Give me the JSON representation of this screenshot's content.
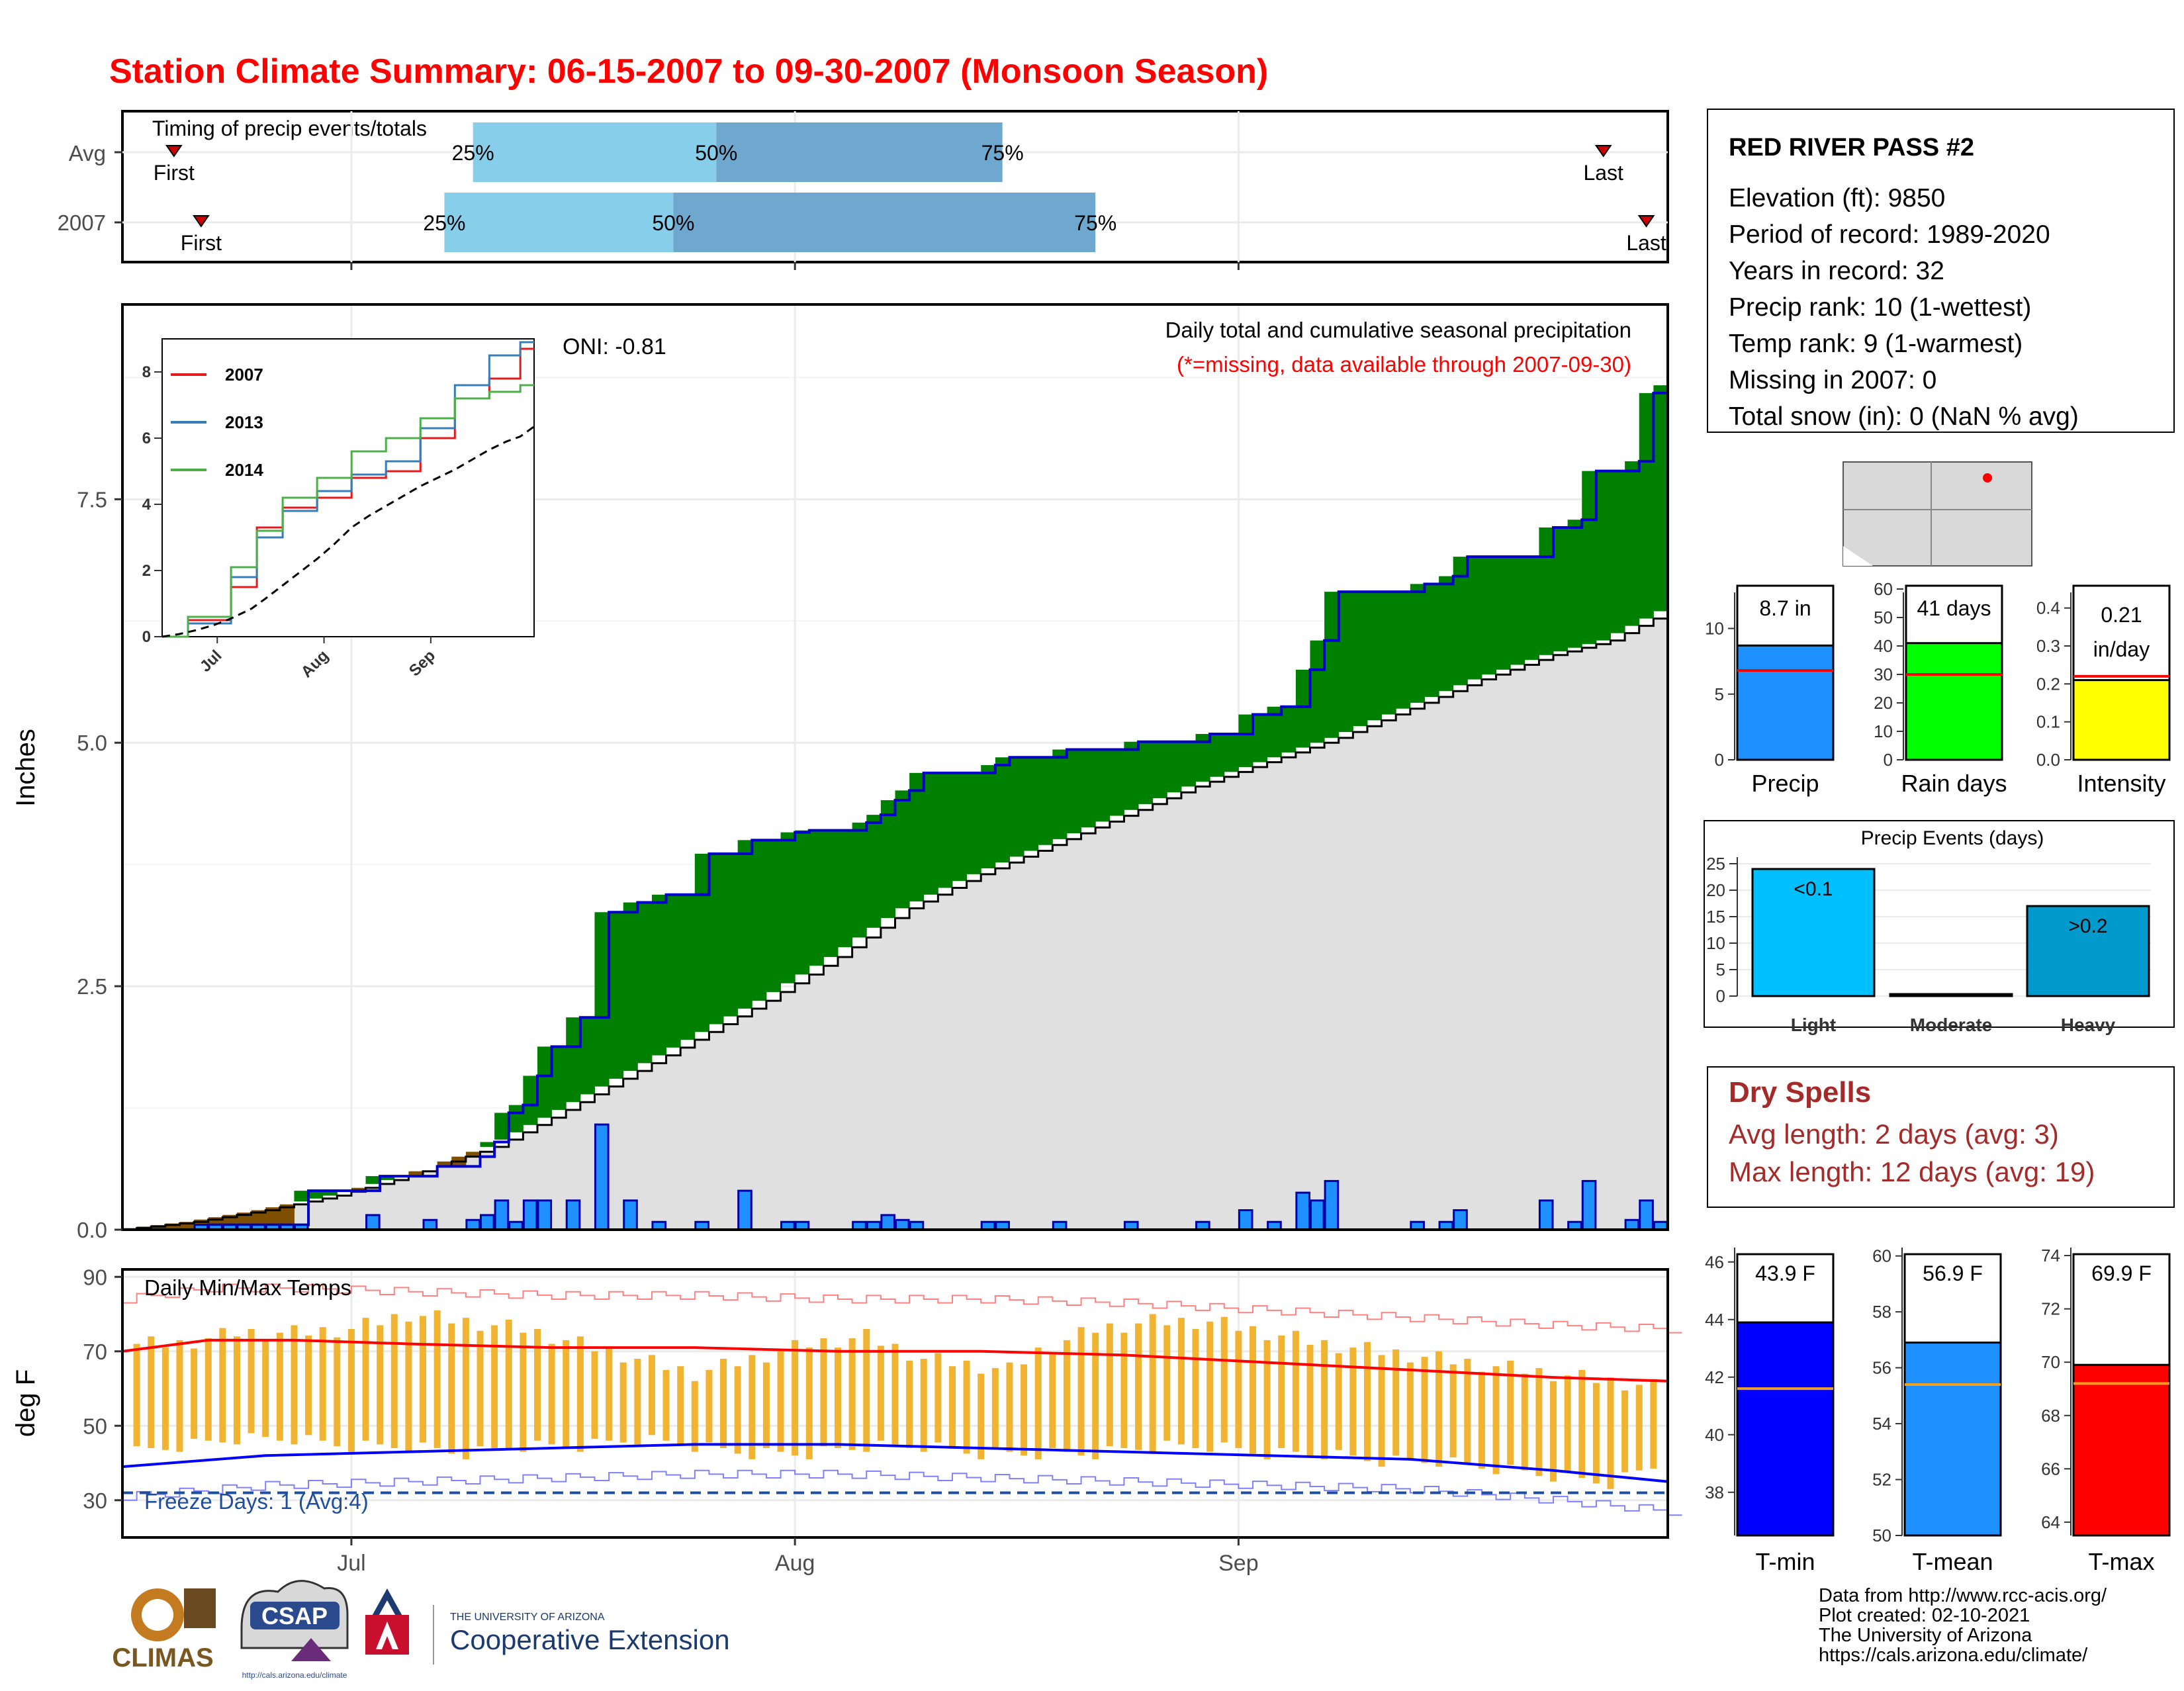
{
  "page": {
    "title": "Station Climate Summary: 06-15-2007 to 09-30-2007 (Monsoon Season)",
    "footer_lines": [
      "Data from http://www.rcc-acis.org/",
      "Plot created: 02-10-2021",
      "The University of Arizona",
      "https://cals.arizona.edu/climate/"
    ],
    "logos": {
      "climas": "CLIMAS",
      "csap": "CSAP",
      "csap_url": "http://cals.arizona.edu/climate",
      "ua_small": "THE UNIVERSITY OF ARIZONA",
      "ua_big": "Cooperative Extension"
    }
  },
  "colors": {
    "title": "#ff0000",
    "light_blue": "#87ceeb",
    "mid_blue": "#6fa8cf",
    "green": "#008000",
    "brown": "#7f4f00",
    "grey_fill": "#e0e0e0",
    "bar_blue": "#1e90ff",
    "temp_bar": "#f0b432",
    "dry_spell_text": "#a52a2a"
  },
  "station": {
    "name": "RED RIVER PASS #2",
    "lines": [
      "Elevation (ft): 9850",
      "Period of record: 1989-2020",
      "Years in record: 32",
      "Precip rank: 10 (1-wettest)",
      "Temp rank: 9 (1-warmest)",
      "Missing in 2007: 0",
      "Total snow (in): 0 (NaN % avg)"
    ]
  },
  "timing": {
    "label": "Timing of precip events/totals",
    "rows": [
      {
        "label": "Avg",
        "first_doy": 3.6,
        "last_doy": 103.5,
        "p25": 24.5,
        "p50": 41.5,
        "p75": 61.5,
        "first": "First",
        "last": "Last",
        "p25_label": "25%",
        "p50_label": "50%",
        "p75_label": "75%"
      },
      {
        "label": "2007",
        "first_doy": 5.5,
        "last_doy": 106.5,
        "p25": 22.5,
        "p50": 38.5,
        "p75": 68.0,
        "first": "First",
        "last": "Last",
        "p25_label": "25%",
        "p50_label": "50%",
        "p75_label": "75%"
      }
    ]
  },
  "precip": {
    "oni": "ONI: -0.81",
    "subtitle": "Daily total and cumulative seasonal precipitation",
    "missing_note": "(*=missing, data available through 2007-09-30)",
    "ylabel": "Inches",
    "y_ticks": [
      "0.0",
      "2.5",
      "5.0",
      "7.5"
    ],
    "month_labels": [
      "Jul",
      "Aug",
      "Sep"
    ]
  },
  "inset": {
    "legend": [
      "2007",
      "2013",
      "2014"
    ],
    "legend_colors": [
      "#e41a1c",
      "#377eb8",
      "#4daf4a"
    ],
    "y_ticks": [
      "0",
      "2",
      "4",
      "6",
      "8"
    ],
    "x_ticks": [
      "Jul",
      "Aug",
      "Sep"
    ]
  },
  "temps": {
    "label": "Daily Min/Max Temps",
    "freeze": "Freeze Days: 1 (Avg:4)",
    "ylabel": "deg F",
    "y_ticks": [
      "30",
      "50",
      "70",
      "90"
    ]
  },
  "summary_bars": [
    {
      "label": "Precip",
      "value_label": "8.7 in",
      "ticks": [
        "0",
        "5",
        "10"
      ]
    },
    {
      "label": "Rain days",
      "value_label": "41 days",
      "ticks": [
        "0",
        "10",
        "20",
        "30",
        "40",
        "50",
        "60"
      ]
    },
    {
      "label": "Intensity",
      "value_label": "0.21",
      "value_label2": "in/day",
      "ticks": [
        "0.0",
        "0.1",
        "0.2",
        "0.3",
        "0.4"
      ]
    }
  ],
  "events": {
    "title": "Precip Events (days)",
    "ticks": [
      "0",
      "5",
      "10",
      "15",
      "20",
      "25"
    ],
    "categories": [
      "Light",
      "Moderate",
      "Heavy"
    ],
    "value_labels": [
      "<0.1",
      "",
      ">0.2"
    ]
  },
  "dry_spells": {
    "title": "Dry Spells",
    "avg": "Avg length: 2 days (avg: 3)",
    "max": "Max length: 12 days (avg: 19)"
  },
  "temp_bars": [
    {
      "label": "T-min",
      "value_label": "43.9 F",
      "ticks": [
        "38",
        "40",
        "42",
        "44",
        "46"
      ]
    },
    {
      "label": "T-mean",
      "value_label": "56.9 F",
      "ticks": [
        "50",
        "52",
        "54",
        "56",
        "58",
        "60"
      ]
    },
    {
      "label": "T-max",
      "value_label": "69.9 F",
      "ticks": [
        "64",
        "66",
        "68",
        "70",
        "72",
        "74"
      ]
    }
  ],
  "chart_data": [
    {
      "type": "bar",
      "name": "timing",
      "categories": [
        "Avg",
        "2007"
      ],
      "x_unit": "day of season (0 = 06-15)",
      "series": [
        {
          "name": "25%",
          "values": [
            24.5,
            22.5
          ]
        },
        {
          "name": "50%",
          "values": [
            41.5,
            38.5
          ]
        },
        {
          "name": "75%",
          "values": [
            61.5,
            68.0
          ]
        },
        {
          "name": "First",
          "values": [
            3.6,
            5.5
          ]
        },
        {
          "name": "Last",
          "values": [
            103.5,
            106.5
          ]
        }
      ]
    },
    {
      "type": "area",
      "name": "cumulative precipitation",
      "ylabel": "Inches",
      "ylim": [
        0,
        9.5
      ],
      "x_unit": "day of season (0 = 06-15)",
      "daily_2007": [
        [
          6,
          0.05
        ],
        [
          7,
          0.05
        ],
        [
          8,
          0.05
        ],
        [
          9,
          0.05
        ],
        [
          10,
          0.05
        ],
        [
          11,
          0.05
        ],
        [
          12,
          0.05
        ],
        [
          13,
          0.05
        ],
        [
          18,
          0.15
        ],
        [
          22,
          0.1
        ],
        [
          25,
          0.1
        ],
        [
          26,
          0.15
        ],
        [
          27,
          0.3
        ],
        [
          28,
          0.08
        ],
        [
          29,
          0.3
        ],
        [
          30,
          0.3
        ],
        [
          32,
          0.3
        ],
        [
          34,
          1.08
        ],
        [
          36,
          0.3
        ],
        [
          38,
          0.08
        ],
        [
          41,
          0.08
        ],
        [
          44,
          0.4
        ],
        [
          47,
          0.08
        ],
        [
          48,
          0.08
        ],
        [
          52,
          0.08
        ],
        [
          53,
          0.08
        ],
        [
          54,
          0.15
        ],
        [
          55,
          0.1
        ],
        [
          56,
          0.08
        ],
        [
          61,
          0.08
        ],
        [
          62,
          0.08
        ],
        [
          66,
          0.08
        ],
        [
          71,
          0.08
        ],
        [
          76,
          0.08
        ],
        [
          79,
          0.2
        ],
        [
          81,
          0.08
        ],
        [
          83,
          0.38
        ],
        [
          84,
          0.3
        ],
        [
          85,
          0.5
        ],
        [
          91,
          0.08
        ],
        [
          93,
          0.08
        ],
        [
          94,
          0.2
        ],
        [
          100,
          0.3
        ],
        [
          102,
          0.08
        ],
        [
          103,
          0.5
        ],
        [
          106,
          0.1
        ],
        [
          107,
          0.3
        ],
        [
          108,
          0.08
        ]
      ],
      "cumulative_2007": [
        [
          0,
          0
        ],
        [
          5,
          0
        ],
        [
          6,
          0.05
        ],
        [
          13,
          0.4
        ],
        [
          18,
          0.55
        ],
        [
          22,
          0.65
        ],
        [
          25,
          0.75
        ],
        [
          26,
          0.9
        ],
        [
          27,
          1.2
        ],
        [
          28,
          1.28
        ],
        [
          29,
          1.58
        ],
        [
          30,
          1.88
        ],
        [
          32,
          2.18
        ],
        [
          34,
          3.26
        ],
        [
          36,
          3.36
        ],
        [
          38,
          3.44
        ],
        [
          41,
          3.86
        ],
        [
          44,
          4.0
        ],
        [
          47,
          4.08
        ],
        [
          48,
          4.1
        ],
        [
          52,
          4.18
        ],
        [
          53,
          4.26
        ],
        [
          54,
          4.41
        ],
        [
          55,
          4.51
        ],
        [
          56,
          4.69
        ],
        [
          61,
          4.77
        ],
        [
          62,
          4.85
        ],
        [
          66,
          4.93
        ],
        [
          71,
          5.01
        ],
        [
          76,
          5.09
        ],
        [
          79,
          5.29
        ],
        [
          81,
          5.37
        ],
        [
          83,
          5.75
        ],
        [
          84,
          6.05
        ],
        [
          85,
          6.55
        ],
        [
          91,
          6.63
        ],
        [
          93,
          6.71
        ],
        [
          94,
          6.91
        ],
        [
          100,
          7.21
        ],
        [
          102,
          7.29
        ],
        [
          103,
          7.79
        ],
        [
          106,
          7.89
        ],
        [
          107,
          8.59
        ],
        [
          108,
          8.67
        ]
      ],
      "cumulative_avg": [
        [
          0,
          0
        ],
        [
          5,
          0.08
        ],
        [
          10,
          0.2
        ],
        [
          15,
          0.35
        ],
        [
          20,
          0.55
        ],
        [
          26,
          0.85
        ],
        [
          30,
          1.15
        ],
        [
          35,
          1.55
        ],
        [
          40,
          1.95
        ],
        [
          45,
          2.35
        ],
        [
          50,
          2.8
        ],
        [
          55,
          3.3
        ],
        [
          60,
          3.65
        ],
        [
          65,
          3.95
        ],
        [
          70,
          4.25
        ],
        [
          75,
          4.55
        ],
        [
          80,
          4.8
        ],
        [
          85,
          5.05
        ],
        [
          90,
          5.35
        ],
        [
          95,
          5.65
        ],
        [
          100,
          5.9
        ],
        [
          104,
          6.05
        ],
        [
          108,
          6.35
        ]
      ]
    },
    {
      "type": "line",
      "name": "daily min/max temps",
      "ylabel": "deg F",
      "ylim": [
        20,
        92
      ],
      "x_unit": "day of season (0 = 06-15)",
      "tmax_2007": [
        [
          0,
          72
        ],
        [
          4,
          72
        ],
        [
          8,
          75
        ],
        [
          12,
          75
        ],
        [
          16,
          76
        ],
        [
          20,
          80
        ],
        [
          24,
          78
        ],
        [
          28,
          76
        ],
        [
          30,
          74
        ],
        [
          34,
          70
        ],
        [
          38,
          66
        ],
        [
          40,
          64
        ],
        [
          44,
          68
        ],
        [
          48,
          72
        ],
        [
          52,
          74
        ],
        [
          56,
          68
        ],
        [
          60,
          66
        ],
        [
          62,
          65
        ],
        [
          64,
          70
        ],
        [
          68,
          76
        ],
        [
          72,
          78
        ],
        [
          76,
          78
        ],
        [
          80,
          75
        ],
        [
          84,
          72
        ],
        [
          88,
          70
        ],
        [
          92,
          68
        ],
        [
          96,
          66
        ],
        [
          100,
          64
        ],
        [
          104,
          62
        ],
        [
          108,
          60
        ]
      ],
      "tmin_2007": [
        [
          0,
          42
        ],
        [
          4,
          44
        ],
        [
          8,
          46
        ],
        [
          12,
          46
        ],
        [
          16,
          44
        ],
        [
          20,
          44
        ],
        [
          24,
          42
        ],
        [
          28,
          44
        ],
        [
          32,
          44
        ],
        [
          36,
          46
        ],
        [
          40,
          44
        ],
        [
          44,
          42
        ],
        [
          48,
          42
        ],
        [
          52,
          44
        ],
        [
          56,
          44
        ],
        [
          60,
          42
        ],
        [
          64,
          42
        ],
        [
          68,
          42
        ],
        [
          72,
          44
        ],
        [
          76,
          44
        ],
        [
          80,
          42
        ],
        [
          84,
          42
        ],
        [
          88,
          40
        ],
        [
          92,
          40
        ],
        [
          96,
          38
        ],
        [
          100,
          36
        ],
        [
          104,
          34
        ],
        [
          108,
          40
        ]
      ],
      "avg_tmax": [
        [
          0,
          70
        ],
        [
          6,
          73
        ],
        [
          12,
          73
        ],
        [
          20,
          72
        ],
        [
          30,
          71
        ],
        [
          40,
          71
        ],
        [
          50,
          70
        ],
        [
          60,
          70
        ],
        [
          70,
          69
        ],
        [
          80,
          67
        ],
        [
          90,
          65
        ],
        [
          100,
          63
        ],
        [
          108,
          62
        ]
      ],
      "avg_tmin": [
        [
          0,
          39
        ],
        [
          10,
          42
        ],
        [
          20,
          43
        ],
        [
          30,
          44
        ],
        [
          40,
          45
        ],
        [
          50,
          45
        ],
        [
          60,
          44
        ],
        [
          70,
          43
        ],
        [
          80,
          42
        ],
        [
          90,
          41
        ],
        [
          100,
          38
        ],
        [
          108,
          35
        ]
      ],
      "freeze_line": 32
    },
    {
      "type": "bar",
      "name": "Precip",
      "values": [
        8.7
      ],
      "average": 6.8,
      "ylim": [
        0,
        13
      ]
    },
    {
      "type": "bar",
      "name": "Rain days",
      "values": [
        41
      ],
      "average": 30,
      "ylim": [
        0,
        60
      ]
    },
    {
      "type": "bar",
      "name": "Intensity",
      "values": [
        0.21
      ],
      "average": 0.22,
      "ylim": [
        0,
        0.45
      ]
    },
    {
      "type": "bar",
      "name": "Precip Events (days)",
      "categories": [
        "Light",
        "Moderate",
        "Heavy"
      ],
      "values": [
        24,
        0,
        17
      ],
      "ylim": [
        0,
        25
      ]
    },
    {
      "type": "bar",
      "name": "T-min",
      "values": [
        43.9
      ],
      "average": 41.6,
      "ylim": [
        36.5,
        46.5
      ]
    },
    {
      "type": "bar",
      "name": "T-mean",
      "values": [
        56.9
      ],
      "average": 55.4,
      "ylim": [
        50,
        60.3
      ]
    },
    {
      "type": "bar",
      "name": "T-max",
      "values": [
        69.9
      ],
      "average": 69.2,
      "ylim": [
        63.5,
        74.3
      ]
    },
    {
      "type": "line",
      "name": "inset cumulative",
      "ylim": [
        0,
        9
      ],
      "series": [
        {
          "name": "2007",
          "values": [
            [
              0,
              0
            ],
            [
              15,
              0.5
            ],
            [
              25,
              1.5
            ],
            [
              30,
              3.3
            ],
            [
              40,
              3.9
            ],
            [
              50,
              4.2
            ],
            [
              60,
              4.8
            ],
            [
              70,
              5.0
            ],
            [
              80,
              6.0
            ],
            [
              90,
              7.2
            ],
            [
              100,
              7.8
            ],
            [
              108,
              8.7
            ]
          ]
        },
        {
          "name": "2013",
          "values": [
            [
              0,
              0
            ],
            [
              15,
              0.4
            ],
            [
              25,
              1.8
            ],
            [
              30,
              3.0
            ],
            [
              40,
              3.8
            ],
            [
              50,
              4.4
            ],
            [
              60,
              4.9
            ],
            [
              70,
              5.3
            ],
            [
              80,
              6.3
            ],
            [
              90,
              7.6
            ],
            [
              100,
              8.5
            ],
            [
              108,
              8.9
            ]
          ]
        },
        {
          "name": "2014",
          "values": [
            [
              0,
              0
            ],
            [
              15,
              0.6
            ],
            [
              25,
              2.1
            ],
            [
              30,
              3.2
            ],
            [
              40,
              4.2
            ],
            [
              50,
              4.8
            ],
            [
              60,
              5.6
            ],
            [
              70,
              6.0
            ],
            [
              80,
              6.6
            ],
            [
              90,
              7.2
            ],
            [
              100,
              7.4
            ],
            [
              108,
              7.6
            ]
          ]
        }
      ]
    }
  ]
}
